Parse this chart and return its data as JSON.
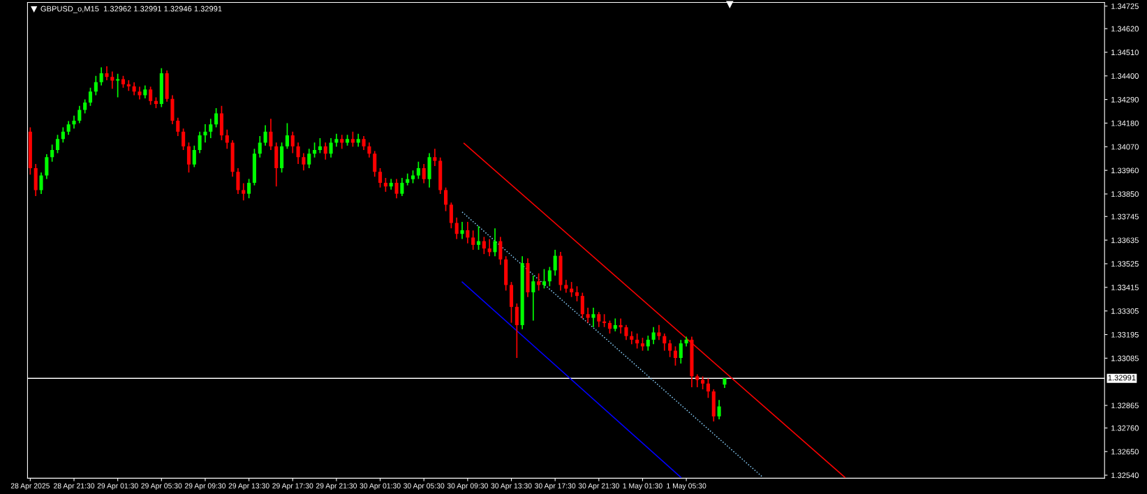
{
  "chart_data": {
    "type": "candlestick",
    "title": "GBPUSD_o,M15  1.32962 1.32991 1.32946 1.32991",
    "x": [
      "2025-04-28T17:30",
      "2025-04-28T18:00",
      "2025-04-28T18:30",
      "2025-04-28T19:00",
      "2025-04-28T19:30",
      "2025-04-28T20:00",
      "2025-04-28T20:30",
      "2025-04-28T21:00",
      "2025-04-28T21:30",
      "2025-04-28T22:00",
      "2025-04-28T22:30",
      "2025-04-28T23:00",
      "2025-04-28T23:30",
      "2025-04-29T00:00",
      "2025-04-29T00:30",
      "2025-04-29T01:00",
      "2025-04-29T01:30",
      "2025-04-29T02:00",
      "2025-04-29T02:30",
      "2025-04-29T03:00",
      "2025-04-29T03:30",
      "2025-04-29T04:00",
      "2025-04-29T04:30",
      "2025-04-29T05:00",
      "2025-04-29T05:30",
      "2025-04-29T06:00",
      "2025-04-29T06:30",
      "2025-04-29T07:00",
      "2025-04-29T07:30",
      "2025-04-29T08:00",
      "2025-04-29T08:30",
      "2025-04-29T09:00",
      "2025-04-29T09:30",
      "2025-04-29T10:00",
      "2025-04-29T10:30",
      "2025-04-29T11:00",
      "2025-04-29T11:30",
      "2025-04-29T12:00",
      "2025-04-29T12:30",
      "2025-04-29T13:00",
      "2025-04-29T13:30",
      "2025-04-29T14:00",
      "2025-04-29T14:30",
      "2025-04-29T15:00",
      "2025-04-29T15:30",
      "2025-04-29T16:00",
      "2025-04-29T16:30",
      "2025-04-29T17:00",
      "2025-04-29T17:30",
      "2025-04-29T18:00",
      "2025-04-29T18:30",
      "2025-04-29T19:00",
      "2025-04-29T19:30",
      "2025-04-29T20:00",
      "2025-04-29T20:30",
      "2025-04-29T21:00",
      "2025-04-29T21:30",
      "2025-04-29T22:00",
      "2025-04-29T22:30",
      "2025-04-29T23:00",
      "2025-04-29T23:30",
      "2025-04-30T00:00",
      "2025-04-30T00:30",
      "2025-04-30T01:00",
      "2025-04-30T01:30",
      "2025-04-30T02:00",
      "2025-04-30T02:30",
      "2025-04-30T03:00",
      "2025-04-30T03:30",
      "2025-04-30T04:00",
      "2025-04-30T04:30",
      "2025-04-30T05:00",
      "2025-04-30T05:30",
      "2025-04-30T06:00",
      "2025-04-30T06:30",
      "2025-04-30T07:00",
      "2025-04-30T07:30",
      "2025-04-30T08:00",
      "2025-04-30T08:30",
      "2025-04-30T09:00",
      "2025-04-30T09:30",
      "2025-04-30T10:00",
      "2025-04-30T10:30",
      "2025-04-30T11:00",
      "2025-04-30T11:30",
      "2025-04-30T12:00",
      "2025-04-30T12:30",
      "2025-04-30T13:00",
      "2025-04-30T13:30",
      "2025-04-30T14:00",
      "2025-04-30T14:30",
      "2025-04-30T15:00",
      "2025-04-30T15:30",
      "2025-04-30T16:00",
      "2025-04-30T16:30",
      "2025-04-30T17:00",
      "2025-04-30T17:30",
      "2025-04-30T18:00",
      "2025-04-30T18:30",
      "2025-04-30T19:00",
      "2025-04-30T19:30",
      "2025-04-30T20:00",
      "2025-04-30T20:30",
      "2025-04-30T21:00",
      "2025-04-30T21:30",
      "2025-04-30T22:00",
      "2025-04-30T22:30",
      "2025-04-30T23:00",
      "2025-04-30T23:30",
      "2025-05-01T00:00",
      "2025-05-01T00:30",
      "2025-05-01T01:00",
      "2025-05-01T01:30",
      "2025-05-01T02:00",
      "2025-05-01T02:30",
      "2025-05-01T03:00",
      "2025-05-01T03:30",
      "2025-05-01T04:00",
      "2025-05-01T04:30",
      "2025-05-01T05:00",
      "2025-05-01T05:30",
      "2025-05-01T06:00",
      "2025-05-01T06:30",
      "2025-05-01T07:00",
      "2025-05-01T07:30",
      "2025-05-01T08:00",
      "2025-05-01T08:30",
      "2025-05-01T09:00"
    ],
    "ohlc": [
      [
        1.3414,
        1.3416,
        1.3394,
        1.3397
      ],
      [
        1.3397,
        1.3399,
        1.3384,
        1.33868
      ],
      [
        1.33868,
        1.3395,
        1.3385,
        1.33936
      ],
      [
        1.33936,
        1.34035,
        1.3392,
        1.34021
      ],
      [
        1.34021,
        1.3408,
        1.34,
        1.34055
      ],
      [
        1.34055,
        1.34125,
        1.3404,
        1.34106
      ],
      [
        1.34106,
        1.3416,
        1.3409,
        1.3414
      ],
      [
        1.3414,
        1.3419,
        1.34125,
        1.34174
      ],
      [
        1.34174,
        1.34215,
        1.34155,
        1.34191
      ],
      [
        1.34191,
        1.3426,
        1.3418,
        1.34242
      ],
      [
        1.34242,
        1.3429,
        1.34225,
        1.34276
      ],
      [
        1.34276,
        1.34345,
        1.3426,
        1.34327
      ],
      [
        1.34327,
        1.344,
        1.3431,
        1.34371
      ],
      [
        1.34371,
        1.3444,
        1.34355,
        1.34412
      ],
      [
        1.34412,
        1.34445,
        1.3438,
        1.34395
      ],
      [
        1.34395,
        1.3442,
        1.3434,
        1.34378
      ],
      [
        1.34378,
        1.3441,
        1.343,
        1.34385
      ],
      [
        1.34385,
        1.344,
        1.34345,
        1.34361
      ],
      [
        1.34361,
        1.3438,
        1.3433,
        1.34351
      ],
      [
        1.34351,
        1.3437,
        1.3431,
        1.34327
      ],
      [
        1.34327,
        1.3435,
        1.3429,
        1.3431
      ],
      [
        1.3431,
        1.34355,
        1.34295,
        1.34337
      ],
      [
        1.34337,
        1.3435,
        1.34265,
        1.34283
      ],
      [
        1.34283,
        1.343,
        1.3425,
        1.34269
      ],
      [
        1.34269,
        1.34436,
        1.34255,
        1.34412
      ],
      [
        1.34412,
        1.34425,
        1.3428,
        1.34293
      ],
      [
        1.34293,
        1.3431,
        1.34175,
        1.34191
      ],
      [
        1.34191,
        1.34205,
        1.3412,
        1.3414
      ],
      [
        1.3414,
        1.34155,
        1.34055,
        1.34072
      ],
      [
        1.34072,
        1.3409,
        1.3395,
        1.33987
      ],
      [
        1.33987,
        1.34075,
        1.33975,
        1.34055
      ],
      [
        1.34055,
        1.3414,
        1.3404,
        1.34123
      ],
      [
        1.34123,
        1.34175,
        1.3409,
        1.3414
      ],
      [
        1.3414,
        1.342,
        1.3411,
        1.34174
      ],
      [
        1.34174,
        1.3425,
        1.3416,
        1.34225
      ],
      [
        1.34225,
        1.3426,
        1.341,
        1.34123
      ],
      [
        1.34123,
        1.3415,
        1.3406,
        1.34089
      ],
      [
        1.34089,
        1.341,
        1.3393,
        1.33953
      ],
      [
        1.33953,
        1.3397,
        1.3385,
        1.33868
      ],
      [
        1.33868,
        1.339,
        1.3382,
        1.33851
      ],
      [
        1.33851,
        1.3392,
        1.3383,
        1.33902
      ],
      [
        1.33902,
        1.3406,
        1.3389,
        1.34038
      ],
      [
        1.34038,
        1.3412,
        1.3402,
        1.34089
      ],
      [
        1.34089,
        1.3417,
        1.34075,
        1.3414
      ],
      [
        1.3414,
        1.342,
        1.34055,
        1.34072
      ],
      [
        1.34072,
        1.3409,
        1.33885,
        1.3397
      ],
      [
        1.3397,
        1.3409,
        1.3395,
        1.34072
      ],
      [
        1.34072,
        1.3418,
        1.3406,
        1.34123
      ],
      [
        1.34123,
        1.3414,
        1.3404,
        1.34072
      ],
      [
        1.34072,
        1.3409,
        1.3399,
        1.34021
      ],
      [
        1.34021,
        1.3404,
        1.3396,
        1.33987
      ],
      [
        1.33987,
        1.3406,
        1.3397,
        1.34038
      ],
      [
        1.34038,
        1.3409,
        1.3402,
        1.34055
      ],
      [
        1.34055,
        1.3411,
        1.3404,
        1.34072
      ],
      [
        1.34072,
        1.3409,
        1.3401,
        1.34038
      ],
      [
        1.34038,
        1.3411,
        1.3402,
        1.34089
      ],
      [
        1.34089,
        1.3413,
        1.3407,
        1.34106
      ],
      [
        1.34106,
        1.34125,
        1.3406,
        1.34089
      ],
      [
        1.34089,
        1.34125,
        1.34075,
        1.34106
      ],
      [
        1.34106,
        1.3414,
        1.3407,
        1.34089
      ],
      [
        1.34089,
        1.3413,
        1.3407,
        1.34106
      ],
      [
        1.34106,
        1.3412,
        1.34055,
        1.34072
      ],
      [
        1.34072,
        1.3409,
        1.3402,
        1.34038
      ],
      [
        1.34038,
        1.3405,
        1.3393,
        1.33953
      ],
      [
        1.33953,
        1.3397,
        1.3388,
        1.33902
      ],
      [
        1.33902,
        1.33925,
        1.3386,
        1.33885
      ],
      [
        1.33885,
        1.3392,
        1.3387,
        1.33902
      ],
      [
        1.33902,
        1.3392,
        1.3383,
        1.33851
      ],
      [
        1.33851,
        1.33925,
        1.3384,
        1.33902
      ],
      [
        1.33902,
        1.33945,
        1.3389,
        1.33919
      ],
      [
        1.33919,
        1.3396,
        1.339,
        1.33936
      ],
      [
        1.33936,
        1.34,
        1.3392,
        1.3397
      ],
      [
        1.3397,
        1.3399,
        1.339,
        1.33919
      ],
      [
        1.33919,
        1.3404,
        1.3388,
        1.34021
      ],
      [
        1.34021,
        1.3406,
        1.3398,
        1.34004
      ],
      [
        1.34004,
        1.3402,
        1.3385,
        1.33868
      ],
      [
        1.33868,
        1.3388,
        1.3377,
        1.338
      ],
      [
        1.338,
        1.3381,
        1.3369,
        1.33715
      ],
      [
        1.33715,
        1.3374,
        1.3364,
        1.33664
      ],
      [
        1.33664,
        1.3372,
        1.3364,
        1.33681
      ],
      [
        1.33681,
        1.3372,
        1.3362,
        1.33647
      ],
      [
        1.33647,
        1.3368,
        1.3359,
        1.33613
      ],
      [
        1.33613,
        1.337,
        1.3359,
        1.3363
      ],
      [
        1.3363,
        1.3365,
        1.3357,
        1.33596
      ],
      [
        1.33596,
        1.3364,
        1.3356,
        1.33579
      ],
      [
        1.33579,
        1.3369,
        1.3356,
        1.3363
      ],
      [
        1.3363,
        1.3365,
        1.3352,
        1.33545
      ],
      [
        1.33545,
        1.3356,
        1.334,
        1.33426
      ],
      [
        1.33426,
        1.3344,
        1.3325,
        1.33324
      ],
      [
        1.33324,
        1.3334,
        1.33086,
        1.33239
      ],
      [
        1.33239,
        1.3356,
        1.3322,
        1.33528
      ],
      [
        1.33528,
        1.3355,
        1.3337,
        1.33392
      ],
      [
        1.33392,
        1.3347,
        1.3326,
        1.33443
      ],
      [
        1.33443,
        1.3348,
        1.334,
        1.33426
      ],
      [
        1.33426,
        1.335,
        1.3341,
        1.33443
      ],
      [
        1.33443,
        1.3351,
        1.3342,
        1.33494
      ],
      [
        1.33494,
        1.3359,
        1.3347,
        1.33562
      ],
      [
        1.33562,
        1.3358,
        1.334,
        1.33426
      ],
      [
        1.33426,
        1.3345,
        1.3339,
        1.33409
      ],
      [
        1.33409,
        1.3344,
        1.3337,
        1.33392
      ],
      [
        1.33392,
        1.3342,
        1.3335,
        1.33375
      ],
      [
        1.33375,
        1.3339,
        1.3327,
        1.3329
      ],
      [
        1.3329,
        1.3332,
        1.3325,
        1.33273
      ],
      [
        1.33273,
        1.3332,
        1.3323,
        1.3329
      ],
      [
        1.3329,
        1.333,
        1.3323,
        1.33256
      ],
      [
        1.33256,
        1.3329,
        1.3323,
        1.33249
      ],
      [
        1.33249,
        1.3326,
        1.332,
        1.33222
      ],
      [
        1.33222,
        1.3327,
        1.3321,
        1.33239
      ],
      [
        1.33239,
        1.3327,
        1.332,
        1.33229
      ],
      [
        1.33229,
        1.3324,
        1.3317,
        1.33188
      ],
      [
        1.33188,
        1.3321,
        1.3315,
        1.33171
      ],
      [
        1.33171,
        1.332,
        1.3313,
        1.33154
      ],
      [
        1.33154,
        1.3318,
        1.3312,
        1.3314
      ],
      [
        1.3314,
        1.3319,
        1.3312,
        1.33171
      ],
      [
        1.33171,
        1.3323,
        1.3315,
        1.33205
      ],
      [
        1.33205,
        1.3324,
        1.3317,
        1.33188
      ],
      [
        1.33188,
        1.332,
        1.3312,
        1.33154
      ],
      [
        1.33154,
        1.3317,
        1.3309,
        1.3312
      ],
      [
        1.3312,
        1.3314,
        1.3305,
        1.33086
      ],
      [
        1.33086,
        1.3317,
        1.3306,
        1.33154
      ],
      [
        1.33154,
        1.33185,
        1.3314,
        1.33171
      ],
      [
        1.33171,
        1.33185,
        1.3295,
        1.33001
      ],
      [
        1.33001,
        1.3301,
        1.3295,
        1.32984
      ],
      [
        1.32984,
        1.33,
        1.3294,
        1.32967
      ],
      [
        1.32967,
        1.3299,
        1.329,
        1.3293
      ],
      [
        1.3293,
        1.3294,
        1.3279,
        1.32814
      ],
      [
        1.32814,
        1.3289,
        1.328,
        1.3286
      ],
      [
        1.32962,
        1.32991,
        1.32946,
        1.32991
      ]
    ],
    "colors": [
      "#ff0000",
      "#ff0000",
      "#00ff00",
      "#00ff00",
      "#00ff00",
      "#00ff00",
      "#00ff00",
      "#00ff00",
      "#00ff00",
      "#00ff00",
      "#00ff00",
      "#00ff00",
      "#00ff00",
      "#00ff00",
      "#ff0000",
      "#ff0000",
      "#00ff00",
      "#ff0000",
      "#ff0000",
      "#ff0000",
      "#ff0000",
      "#00ff00",
      "#ff0000",
      "#ff0000",
      "#00ff00",
      "#ff0000",
      "#ff0000",
      "#ff0000",
      "#ff0000",
      "#ff0000",
      "#00ff00",
      "#00ff00",
      "#00ff00",
      "#00ff00",
      "#00ff00",
      "#ff0000",
      "#ff0000",
      "#ff0000",
      "#ff0000",
      "#ff0000",
      "#00ff00",
      "#00ff00",
      "#00ff00",
      "#00ff00",
      "#ff0000",
      "#ff0000",
      "#00ff00",
      "#00ff00",
      "#ff0000",
      "#ff0000",
      "#ff0000",
      "#00ff00",
      "#00ff00",
      "#00ff00",
      "#ff0000",
      "#00ff00",
      "#00ff00",
      "#ff0000",
      "#00ff00",
      "#ff0000",
      "#00ff00",
      "#ff0000",
      "#ff0000",
      "#ff0000",
      "#ff0000",
      "#ff0000",
      "#00ff00",
      "#ff0000",
      "#00ff00",
      "#00ff00",
      "#00ff00",
      "#00ff00",
      "#ff0000",
      "#00ff00",
      "#ff0000",
      "#ff0000",
      "#ff0000",
      "#ff0000",
      "#ff0000",
      "#00ff00",
      "#ff0000",
      "#ff0000",
      "#00ff00",
      "#ff0000",
      "#ff0000",
      "#00ff00",
      "#ff0000",
      "#ff0000",
      "#ff0000",
      "#ff0000",
      "#00ff00",
      "#ff0000",
      "#00ff00",
      "#ff0000",
      "#00ff00",
      "#00ff00",
      "#00ff00",
      "#ff0000",
      "#ff0000",
      "#ff0000",
      "#ff0000",
      "#ff0000",
      "#ff0000",
      "#00ff00",
      "#ff0000",
      "#ff0000",
      "#ff0000",
      "#00ff00",
      "#ff0000",
      "#ff0000",
      "#ff0000",
      "#ff0000",
      "#ff0000",
      "#00ff00",
      "#00ff00",
      "#ff0000",
      "#ff0000",
      "#ff0000",
      "#ff0000",
      "#00ff00",
      "#00ff00",
      "#ff0000",
      "#ff0000",
      "#ff0000",
      "#ff0000",
      "#ff0000",
      "#00ff00",
      "#00ff00"
    ],
    "series": [
      {
        "type": "line",
        "x": [
          "2025-04-30T09:10",
          "2025-05-01T20:00"
        ],
        "values": [
          1.34086,
          1.3253
        ],
        "color": "#ff0000",
        "line_style": "solid"
      },
      {
        "type": "line",
        "x": [
          "2025-04-30T09:00",
          "2025-05-01T12:30"
        ],
        "values": [
          1.33766,
          1.3253
        ],
        "color": "#87cefa",
        "line_style": "dotted"
      },
      {
        "type": "line",
        "x": [
          "2025-04-30T09:00",
          "2025-05-01T05:00"
        ],
        "values": [
          1.3344,
          1.3253
        ],
        "color": "#0000ff",
        "line_style": "solid"
      }
    ],
    "ref_lines": [
      {
        "axis": "y",
        "value": 1.32991,
        "label": "1.32991",
        "color": "#ffffff"
      }
    ],
    "xlim": [
      "2025-04-28T17:15",
      "2025-05-02T19:45"
    ],
    "xticks": [
      {
        "value": "2025-04-28T17:30",
        "label": "28 Apr 2025"
      },
      {
        "value": "2025-04-28T21:30",
        "label": "28 Apr 21:30"
      },
      {
        "value": "2025-04-29T01:30",
        "label": "29 Apr 01:30"
      },
      {
        "value": "2025-04-29T05:30",
        "label": "29 Apr 05:30"
      },
      {
        "value": "2025-04-29T09:30",
        "label": "29 Apr 09:30"
      },
      {
        "value": "2025-04-29T13:30",
        "label": "29 Apr 13:30"
      },
      {
        "value": "2025-04-29T17:30",
        "label": "29 Apr 17:30"
      },
      {
        "value": "2025-04-29T21:30",
        "label": "29 Apr 21:30"
      },
      {
        "value": "2025-04-30T01:30",
        "label": "30 Apr 01:30"
      },
      {
        "value": "2025-04-30T05:30",
        "label": "30 Apr 05:30"
      },
      {
        "value": "2025-04-30T09:30",
        "label": "30 Apr 09:30"
      },
      {
        "value": "2025-04-30T13:30",
        "label": "30 Apr 13:30"
      },
      {
        "value": "2025-04-30T17:30",
        "label": "30 Apr 17:30"
      },
      {
        "value": "2025-04-30T21:30",
        "label": "30 Apr 21:30"
      },
      {
        "value": "2025-05-01T01:30",
        "label": "1 May 01:30"
      },
      {
        "value": "2025-05-01T05:30",
        "label": "1 May 05:30"
      }
    ],
    "ylim": [
      1.32526,
      1.34742
    ],
    "yticks": [
      {
        "value": 1.34725,
        "label": "1.34725"
      },
      {
        "value": 1.3462,
        "label": "1.34620"
      },
      {
        "value": 1.3451,
        "label": "1.34510"
      },
      {
        "value": 1.344,
        "label": "1.34400"
      },
      {
        "value": 1.3429,
        "label": "1.34290"
      },
      {
        "value": 1.3418,
        "label": "1.34180"
      },
      {
        "value": 1.3407,
        "label": "1.34070"
      },
      {
        "value": 1.3396,
        "label": "1.33960"
      },
      {
        "value": 1.3385,
        "label": "1.33850"
      },
      {
        "value": 1.33745,
        "label": "1.33745"
      },
      {
        "value": 1.33635,
        "label": "1.33635"
      },
      {
        "value": 1.33525,
        "label": "1.33525"
      },
      {
        "value": 1.33415,
        "label": "1.33415"
      },
      {
        "value": 1.33305,
        "label": "1.33305"
      },
      {
        "value": 1.33195,
        "label": "1.33195"
      },
      {
        "value": 1.33085,
        "label": "1.33085"
      },
      {
        "value": 1.32865,
        "label": "1.32865"
      },
      {
        "value": 1.3276,
        "label": "1.32760"
      },
      {
        "value": 1.3265,
        "label": "1.32650"
      },
      {
        "value": 1.3254,
        "label": "1.32540"
      }
    ],
    "grid": false,
    "legend": false
  }
}
